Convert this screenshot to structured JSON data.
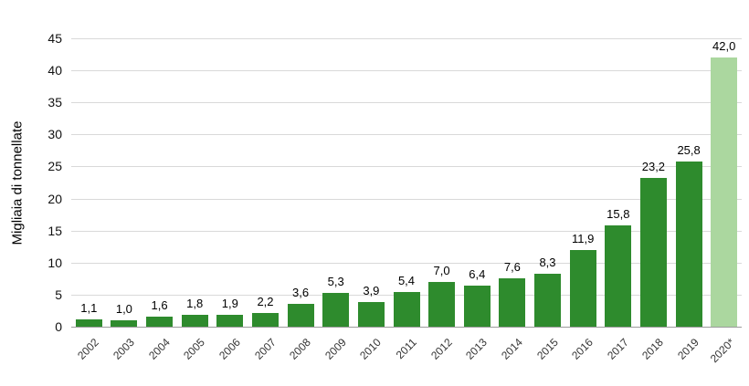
{
  "chart_data": {
    "type": "bar",
    "title": "",
    "xlabel": "",
    "ylabel": "Migliaia di tonnellate",
    "ylim": [
      0,
      45
    ],
    "ytick_step": 5,
    "grid": true,
    "legend": false,
    "categories": [
      "2002",
      "2003",
      "2004",
      "2005",
      "2006",
      "2007",
      "2008",
      "2009",
      "2010",
      "2011",
      "2012",
      "2013",
      "2014",
      "2015",
      "2016",
      "2017",
      "2018",
      "2019",
      "2020*"
    ],
    "values": [
      1.1,
      1.0,
      1.6,
      1.8,
      1.9,
      2.2,
      3.6,
      5.3,
      3.9,
      5.4,
      7.0,
      6.4,
      7.6,
      8.3,
      11.9,
      15.8,
      23.2,
      25.8,
      42.0
    ],
    "value_labels": [
      "1,1",
      "1,0",
      "1,6",
      "1,8",
      "1,9",
      "2,2",
      "3,6",
      "5,3",
      "3,9",
      "5,4",
      "7,0",
      "6,4",
      "7,6",
      "8,3",
      "11,9",
      "15,8",
      "23,2",
      "25,8",
      "42,0"
    ],
    "bar_color": "#2e8b2d",
    "highlight_color": "#abd79f",
    "highlight_index": 18,
    "gridline_color": "#d9d9d9",
    "axis_line_color": "#9b9b9b"
  }
}
